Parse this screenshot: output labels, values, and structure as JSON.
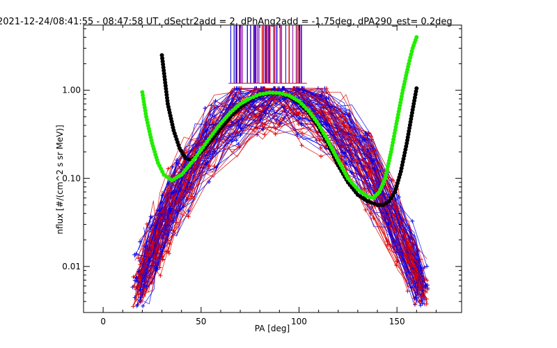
{
  "chart_data": {
    "type": "scatter",
    "title": "2021-12-24/08:41:55 - 08:47:58 UT, dSectr2add = 2, dPhAng2add = -1.75deg, dPA290_est=   0.2deg",
    "xlabel": "PA [deg]",
    "ylabel": "nflux [#/(cm^2 s sr MeV)]",
    "xlim": [
      -10,
      183
    ],
    "ylim": [
      0.003,
      5.5
    ],
    "yscale": "log",
    "grid": false,
    "legend": "none",
    "x_ticks": [
      {
        "value": 0,
        "label": "0"
      },
      {
        "value": 50,
        "label": "50"
      },
      {
        "value": 100,
        "label": "100"
      },
      {
        "value": 150,
        "label": "150"
      }
    ],
    "y_ticks": [
      {
        "value": 0.01,
        "label": "0.01"
      },
      {
        "value": 0.1,
        "label": "0.10"
      },
      {
        "value": 1,
        "label": "1.00"
      }
    ],
    "colors": {
      "red_traces": "#dd0000",
      "blue_traces": "#0000ee",
      "black_fit": "#000000",
      "green_fit": "#22ee00"
    },
    "series": [
      {
        "style": "black-dotted",
        "x": [
          30,
          33,
          36,
          39,
          42,
          45,
          50,
          55,
          60,
          65,
          70,
          75,
          80,
          85,
          90,
          95,
          100,
          105,
          110,
          115,
          120,
          125,
          130,
          135,
          140,
          143,
          146,
          149,
          152,
          155,
          158,
          160
        ],
        "y": [
          2.5,
          0.7,
          0.35,
          0.22,
          0.17,
          0.16,
          0.2,
          0.27,
          0.37,
          0.5,
          0.64,
          0.78,
          0.88,
          0.93,
          0.92,
          0.85,
          0.72,
          0.56,
          0.38,
          0.24,
          0.14,
          0.09,
          0.065,
          0.055,
          0.05,
          0.05,
          0.055,
          0.07,
          0.12,
          0.25,
          0.6,
          1.05
        ]
      },
      {
        "style": "green-dotted",
        "x": [
          20,
          22,
          25,
          28,
          31,
          35,
          40,
          45,
          50,
          55,
          60,
          65,
          70,
          75,
          80,
          85,
          90,
          95,
          100,
          105,
          110,
          115,
          120,
          125,
          130,
          135,
          138,
          141,
          144,
          147,
          150,
          153,
          156,
          158,
          160
        ],
        "y": [
          0.95,
          0.5,
          0.25,
          0.15,
          0.11,
          0.095,
          0.11,
          0.15,
          0.21,
          0.3,
          0.42,
          0.56,
          0.7,
          0.81,
          0.9,
          0.94,
          0.93,
          0.87,
          0.75,
          0.58,
          0.41,
          0.26,
          0.16,
          0.1,
          0.075,
          0.062,
          0.06,
          0.07,
          0.1,
          0.2,
          0.45,
          1.0,
          2.0,
          3.0,
          4.0
        ]
      }
    ]
  }
}
